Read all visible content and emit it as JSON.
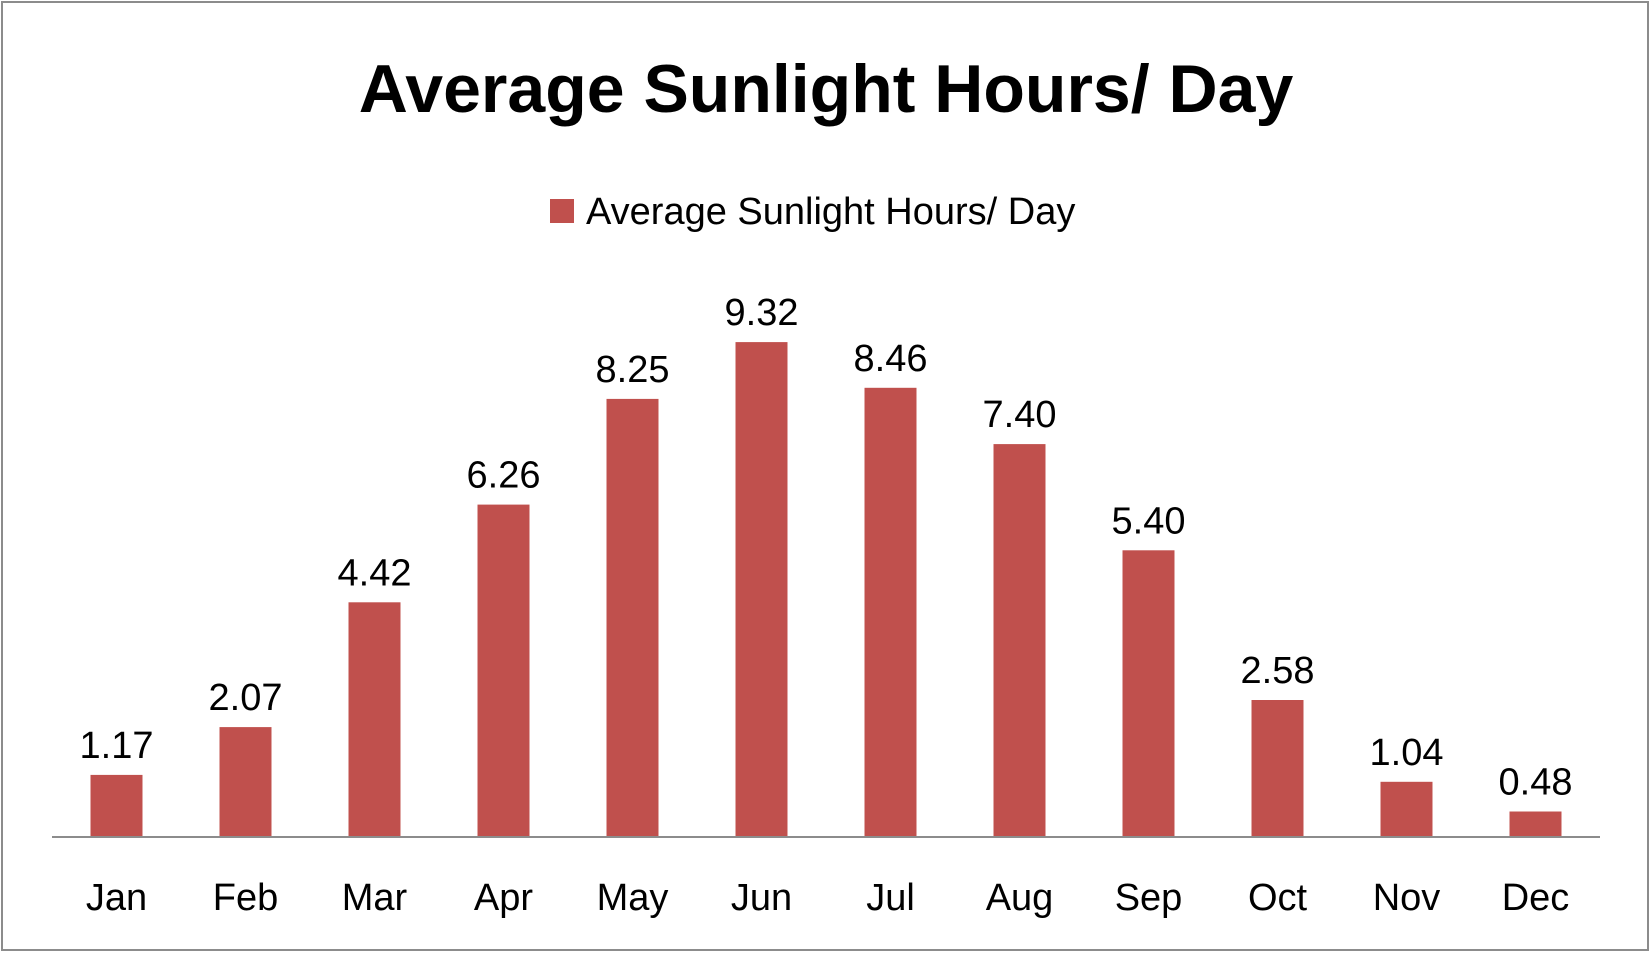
{
  "chart_data": {
    "type": "bar",
    "title": "Average Sunlight Hours/ Day",
    "xlabel": "",
    "ylabel": "",
    "ylim": [
      0,
      10
    ],
    "grid": false,
    "legend_position": "top-center",
    "categories": [
      "Jan",
      "Feb",
      "Mar",
      "Apr",
      "May",
      "Jun",
      "Jul",
      "Aug",
      "Sep",
      "Oct",
      "Nov",
      "Dec"
    ],
    "series": [
      {
        "name": "Average Sunlight Hours/ Day",
        "color": "#c0504d",
        "values": [
          1.17,
          2.07,
          4.42,
          6.26,
          8.25,
          9.32,
          8.46,
          7.4,
          5.4,
          2.58,
          1.04,
          0.48
        ],
        "labels": [
          "1.17",
          "2.07",
          "4.42",
          "6.26",
          "8.25",
          "9.32",
          "8.46",
          "7.40",
          "5.40",
          "2.58",
          "1.04",
          "0.48"
        ]
      }
    ],
    "axis_color": "#8c8c8c"
  }
}
